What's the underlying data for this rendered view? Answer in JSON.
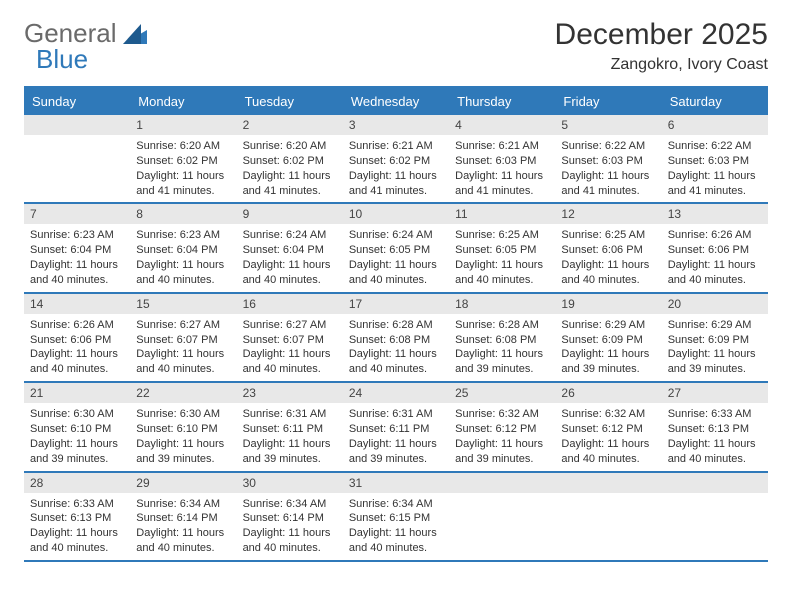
{
  "logo": {
    "text_gray": "General",
    "text_blue": "Blue",
    "icon_color": "#2f79b9"
  },
  "header": {
    "month_title": "December 2025",
    "location": "Zangokro, Ivory Coast"
  },
  "colors": {
    "header_bg": "#2f79b9",
    "header_text": "#ffffff",
    "daynum_bg": "#e8e8e8",
    "border": "#2f79b9",
    "text": "#333333"
  },
  "day_headers": [
    "Sunday",
    "Monday",
    "Tuesday",
    "Wednesday",
    "Thursday",
    "Friday",
    "Saturday"
  ],
  "weeks": [
    [
      {
        "num": "",
        "lines": []
      },
      {
        "num": "1",
        "lines": [
          "Sunrise: 6:20 AM",
          "Sunset: 6:02 PM",
          "Daylight: 11 hours and 41 minutes."
        ]
      },
      {
        "num": "2",
        "lines": [
          "Sunrise: 6:20 AM",
          "Sunset: 6:02 PM",
          "Daylight: 11 hours and 41 minutes."
        ]
      },
      {
        "num": "3",
        "lines": [
          "Sunrise: 6:21 AM",
          "Sunset: 6:02 PM",
          "Daylight: 11 hours and 41 minutes."
        ]
      },
      {
        "num": "4",
        "lines": [
          "Sunrise: 6:21 AM",
          "Sunset: 6:03 PM",
          "Daylight: 11 hours and 41 minutes."
        ]
      },
      {
        "num": "5",
        "lines": [
          "Sunrise: 6:22 AM",
          "Sunset: 6:03 PM",
          "Daylight: 11 hours and 41 minutes."
        ]
      },
      {
        "num": "6",
        "lines": [
          "Sunrise: 6:22 AM",
          "Sunset: 6:03 PM",
          "Daylight: 11 hours and 41 minutes."
        ]
      }
    ],
    [
      {
        "num": "7",
        "lines": [
          "Sunrise: 6:23 AM",
          "Sunset: 6:04 PM",
          "Daylight: 11 hours and 40 minutes."
        ]
      },
      {
        "num": "8",
        "lines": [
          "Sunrise: 6:23 AM",
          "Sunset: 6:04 PM",
          "Daylight: 11 hours and 40 minutes."
        ]
      },
      {
        "num": "9",
        "lines": [
          "Sunrise: 6:24 AM",
          "Sunset: 6:04 PM",
          "Daylight: 11 hours and 40 minutes."
        ]
      },
      {
        "num": "10",
        "lines": [
          "Sunrise: 6:24 AM",
          "Sunset: 6:05 PM",
          "Daylight: 11 hours and 40 minutes."
        ]
      },
      {
        "num": "11",
        "lines": [
          "Sunrise: 6:25 AM",
          "Sunset: 6:05 PM",
          "Daylight: 11 hours and 40 minutes."
        ]
      },
      {
        "num": "12",
        "lines": [
          "Sunrise: 6:25 AM",
          "Sunset: 6:06 PM",
          "Daylight: 11 hours and 40 minutes."
        ]
      },
      {
        "num": "13",
        "lines": [
          "Sunrise: 6:26 AM",
          "Sunset: 6:06 PM",
          "Daylight: 11 hours and 40 minutes."
        ]
      }
    ],
    [
      {
        "num": "14",
        "lines": [
          "Sunrise: 6:26 AM",
          "Sunset: 6:06 PM",
          "Daylight: 11 hours and 40 minutes."
        ]
      },
      {
        "num": "15",
        "lines": [
          "Sunrise: 6:27 AM",
          "Sunset: 6:07 PM",
          "Daylight: 11 hours and 40 minutes."
        ]
      },
      {
        "num": "16",
        "lines": [
          "Sunrise: 6:27 AM",
          "Sunset: 6:07 PM",
          "Daylight: 11 hours and 40 minutes."
        ]
      },
      {
        "num": "17",
        "lines": [
          "Sunrise: 6:28 AM",
          "Sunset: 6:08 PM",
          "Daylight: 11 hours and 40 minutes."
        ]
      },
      {
        "num": "18",
        "lines": [
          "Sunrise: 6:28 AM",
          "Sunset: 6:08 PM",
          "Daylight: 11 hours and 39 minutes."
        ]
      },
      {
        "num": "19",
        "lines": [
          "Sunrise: 6:29 AM",
          "Sunset: 6:09 PM",
          "Daylight: 11 hours and 39 minutes."
        ]
      },
      {
        "num": "20",
        "lines": [
          "Sunrise: 6:29 AM",
          "Sunset: 6:09 PM",
          "Daylight: 11 hours and 39 minutes."
        ]
      }
    ],
    [
      {
        "num": "21",
        "lines": [
          "Sunrise: 6:30 AM",
          "Sunset: 6:10 PM",
          "Daylight: 11 hours and 39 minutes."
        ]
      },
      {
        "num": "22",
        "lines": [
          "Sunrise: 6:30 AM",
          "Sunset: 6:10 PM",
          "Daylight: 11 hours and 39 minutes."
        ]
      },
      {
        "num": "23",
        "lines": [
          "Sunrise: 6:31 AM",
          "Sunset: 6:11 PM",
          "Daylight: 11 hours and 39 minutes."
        ]
      },
      {
        "num": "24",
        "lines": [
          "Sunrise: 6:31 AM",
          "Sunset: 6:11 PM",
          "Daylight: 11 hours and 39 minutes."
        ]
      },
      {
        "num": "25",
        "lines": [
          "Sunrise: 6:32 AM",
          "Sunset: 6:12 PM",
          "Daylight: 11 hours and 39 minutes."
        ]
      },
      {
        "num": "26",
        "lines": [
          "Sunrise: 6:32 AM",
          "Sunset: 6:12 PM",
          "Daylight: 11 hours and 40 minutes."
        ]
      },
      {
        "num": "27",
        "lines": [
          "Sunrise: 6:33 AM",
          "Sunset: 6:13 PM",
          "Daylight: 11 hours and 40 minutes."
        ]
      }
    ],
    [
      {
        "num": "28",
        "lines": [
          "Sunrise: 6:33 AM",
          "Sunset: 6:13 PM",
          "Daylight: 11 hours and 40 minutes."
        ]
      },
      {
        "num": "29",
        "lines": [
          "Sunrise: 6:34 AM",
          "Sunset: 6:14 PM",
          "Daylight: 11 hours and 40 minutes."
        ]
      },
      {
        "num": "30",
        "lines": [
          "Sunrise: 6:34 AM",
          "Sunset: 6:14 PM",
          "Daylight: 11 hours and 40 minutes."
        ]
      },
      {
        "num": "31",
        "lines": [
          "Sunrise: 6:34 AM",
          "Sunset: 6:15 PM",
          "Daylight: 11 hours and 40 minutes."
        ]
      },
      {
        "num": "",
        "lines": []
      },
      {
        "num": "",
        "lines": []
      },
      {
        "num": "",
        "lines": []
      }
    ]
  ]
}
